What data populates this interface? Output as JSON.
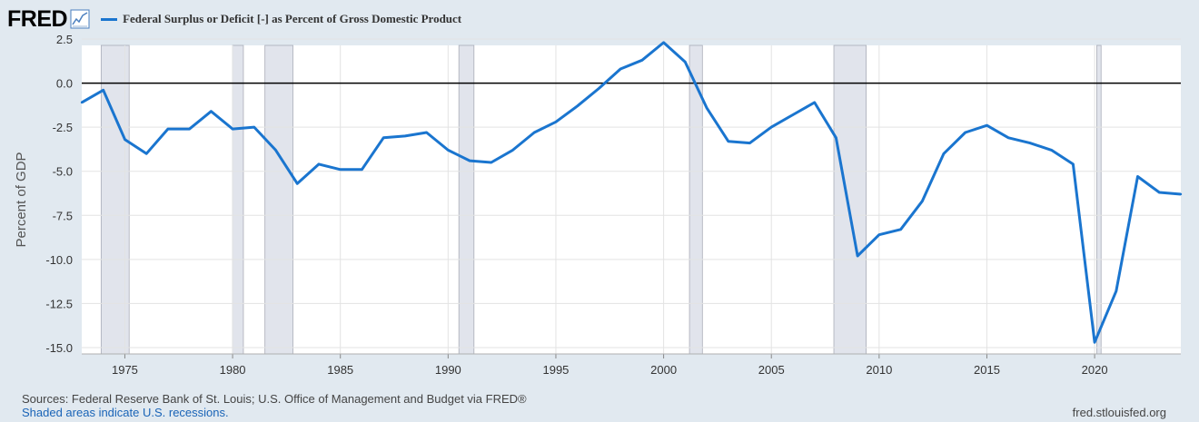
{
  "brand": {
    "name": "FRED",
    "icon": "trend-chart-icon"
  },
  "legend": {
    "label": "Federal Surplus or Deficit [-] as Percent of Gross Domestic Product",
    "color": "#1a75cf"
  },
  "footer": {
    "sources": "Sources: Federal Reserve Bank of St. Louis; U.S. Office of Management and Budget via FRED®",
    "note": "Shaded areas indicate U.S. recessions.",
    "site": "fred.stlouisfed.org"
  },
  "chart_data": {
    "type": "line",
    "title": "",
    "xlabel": "",
    "ylabel": "Percent of GDP",
    "xlim": [
      1973,
      2024
    ],
    "ylim": [
      -15.0,
      2.5
    ],
    "yticks": [
      2.5,
      0.0,
      -2.5,
      -5.0,
      -7.5,
      -10.0,
      -12.5,
      -15.0
    ],
    "ytick_labels": [
      "2.5",
      "0.0",
      "-2.5",
      "-5.0",
      "-7.5",
      "-10.0",
      "-12.5",
      "-15.0"
    ],
    "xticks": [
      1975,
      1980,
      1985,
      1990,
      1995,
      2000,
      2005,
      2010,
      2015,
      2020
    ],
    "xtick_labels": [
      "1975",
      "1980",
      "1985",
      "1990",
      "1995",
      "2000",
      "2005",
      "2010",
      "2015",
      "2020"
    ],
    "grid": true,
    "zero_line": true,
    "recessions": [
      [
        1973.9,
        1975.2
      ],
      [
        1980.0,
        1980.5
      ],
      [
        1981.5,
        1982.8
      ],
      [
        1990.5,
        1991.2
      ],
      [
        2001.2,
        2001.8
      ],
      [
        2007.9,
        2009.4
      ],
      [
        2020.1,
        2020.3
      ]
    ],
    "series": [
      {
        "name": "Federal Surplus or Deficit [-] as Percent of Gross Domestic Product",
        "color": "#1a75cf",
        "x": [
          1973,
          1974,
          1975,
          1976,
          1977,
          1978,
          1979,
          1980,
          1981,
          1982,
          1983,
          1984,
          1985,
          1986,
          1987,
          1988,
          1989,
          1990,
          1991,
          1992,
          1993,
          1994,
          1995,
          1996,
          1997,
          1998,
          1999,
          2000,
          2001,
          2002,
          2003,
          2004,
          2005,
          2006,
          2007,
          2008,
          2009,
          2010,
          2011,
          2012,
          2013,
          2014,
          2015,
          2016,
          2017,
          2018,
          2019,
          2020,
          2021,
          2022,
          2023,
          2024
        ],
        "values": [
          -1.1,
          -0.4,
          -3.2,
          -4.0,
          -2.6,
          -2.6,
          -1.6,
          -2.6,
          -2.5,
          -3.8,
          -5.7,
          -4.6,
          -4.9,
          -4.9,
          -3.1,
          -3.0,
          -2.8,
          -3.8,
          -4.4,
          -4.5,
          -3.8,
          -2.8,
          -2.2,
          -1.3,
          -0.3,
          0.8,
          1.3,
          2.3,
          1.2,
          -1.4,
          -3.3,
          -3.4,
          -2.5,
          -1.8,
          -1.1,
          -3.1,
          -9.8,
          -8.6,
          -8.3,
          -6.7,
          -4.0,
          -2.8,
          -2.4,
          -3.1,
          -3.4,
          -3.8,
          -4.6,
          -14.7,
          -11.8,
          -5.3,
          -6.2,
          -6.3
        ]
      }
    ]
  }
}
